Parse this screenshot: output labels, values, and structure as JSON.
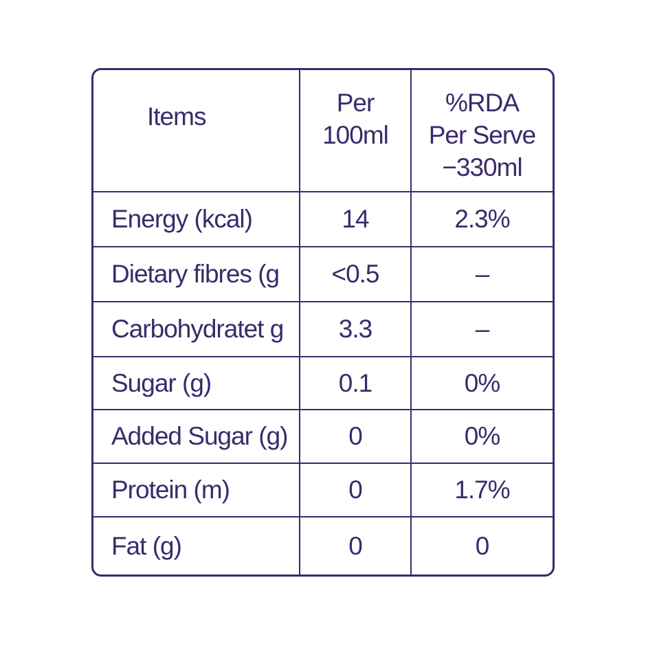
{
  "table": {
    "header": [
      [
        "Items"
      ],
      [
        "Per",
        "100ml"
      ],
      [
        "%RDA",
        "Per Serve",
        "−330ml"
      ]
    ],
    "rows": [
      [
        "Energy (kcal)",
        "14",
        "2.3%"
      ],
      [
        "Dietary fibres (g",
        "<0.5",
        "–"
      ],
      [
        "Carbohydratet g",
        "3.3",
        "–"
      ],
      [
        "Sugar (g)",
        "0.1",
        "0%"
      ],
      [
        "Added Sugar (g)",
        "0",
        "0%"
      ],
      [
        "Protein (m)",
        "0",
        "1.7%"
      ],
      [
        "Fat (g)",
        "0",
        "0"
      ]
    ]
  }
}
